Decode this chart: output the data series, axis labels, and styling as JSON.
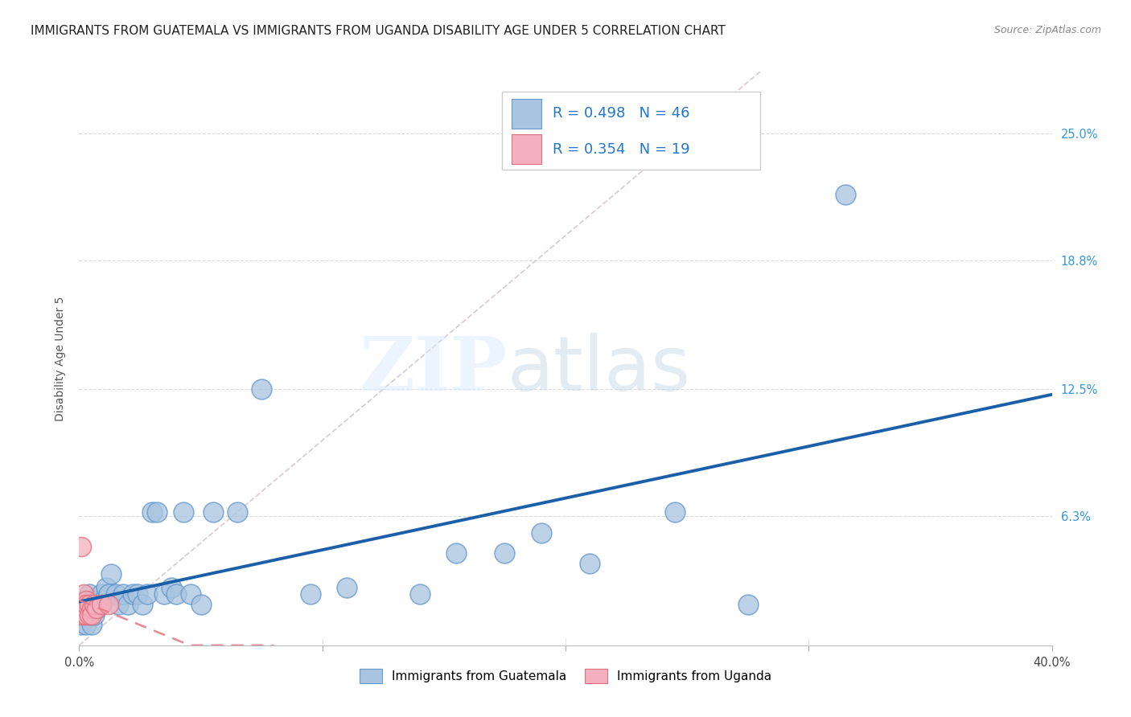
{
  "title": "IMMIGRANTS FROM GUATEMALA VS IMMIGRANTS FROM UGANDA DISABILITY AGE UNDER 5 CORRELATION CHART",
  "source": "Source: ZipAtlas.com",
  "ylabel_label": "Disability Age Under 5",
  "xlim": [
    0.0,
    0.4
  ],
  "ylim": [
    0.0,
    0.28
  ],
  "guatemala_color": "#a8c4e0",
  "guatemala_edge_color": "#6699cc",
  "uganda_color": "#f4b0be",
  "uganda_edge_color": "#e07080",
  "regression_blue_color": "#1a5fa8",
  "regression_pink_color": "#e87a8a",
  "diagonal_color": "#d0c0c8",
  "R_guatemala": 0.498,
  "N_guatemala": 46,
  "R_uganda": 0.354,
  "N_uganda": 19,
  "guatemala_x": [
    0.001,
    0.002,
    0.002,
    0.003,
    0.003,
    0.004,
    0.004,
    0.005,
    0.005,
    0.006,
    0.007,
    0.008,
    0.009,
    0.01,
    0.011,
    0.012,
    0.013,
    0.015,
    0.016,
    0.018,
    0.02,
    0.022,
    0.024,
    0.026,
    0.028,
    0.03,
    0.032,
    0.035,
    0.038,
    0.04,
    0.043,
    0.046,
    0.05,
    0.055,
    0.065,
    0.075,
    0.095,
    0.11,
    0.14,
    0.155,
    0.175,
    0.19,
    0.21,
    0.245,
    0.275,
    0.315
  ],
  "guatemala_y": [
    0.01,
    0.015,
    0.02,
    0.01,
    0.02,
    0.015,
    0.025,
    0.01,
    0.022,
    0.015,
    0.018,
    0.02,
    0.025,
    0.022,
    0.028,
    0.025,
    0.035,
    0.025,
    0.02,
    0.025,
    0.02,
    0.025,
    0.025,
    0.02,
    0.025,
    0.065,
    0.065,
    0.025,
    0.028,
    0.025,
    0.065,
    0.025,
    0.02,
    0.065,
    0.065,
    0.125,
    0.025,
    0.028,
    0.025,
    0.045,
    0.045,
    0.055,
    0.04,
    0.065,
    0.02,
    0.22
  ],
  "uganda_x": [
    0.001,
    0.001,
    0.001,
    0.002,
    0.002,
    0.002,
    0.002,
    0.003,
    0.003,
    0.003,
    0.003,
    0.004,
    0.004,
    0.005,
    0.005,
    0.006,
    0.007,
    0.009,
    0.012
  ],
  "uganda_y": [
    0.048,
    0.02,
    0.015,
    0.025,
    0.018,
    0.015,
    0.02,
    0.018,
    0.022,
    0.015,
    0.02,
    0.02,
    0.015,
    0.018,
    0.015,
    0.02,
    0.018,
    0.02,
    0.02
  ],
  "background_color": "#ffffff",
  "grid_color": "#d8d8d8",
  "title_fontsize": 11,
  "axis_label_fontsize": 10,
  "tick_fontsize": 10.5,
  "source_fontsize": 9,
  "legend_fontsize": 13
}
